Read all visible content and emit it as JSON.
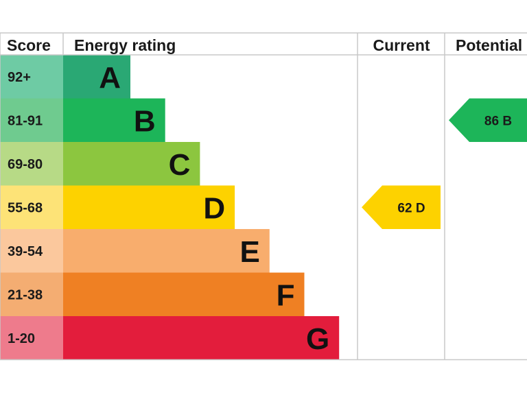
{
  "chart_data": {
    "type": "table",
    "headers": {
      "score": "Score",
      "rating": "Energy rating",
      "current": "Current",
      "potential": "Potential"
    },
    "bands": [
      {
        "letter": "A",
        "range": "92+",
        "color": "#2aa874",
        "score_color": "#6ecba4"
      },
      {
        "letter": "B",
        "range": "81-91",
        "color": "#1db559",
        "score_color": "#6fcb8f"
      },
      {
        "letter": "C",
        "range": "69-80",
        "color": "#8cc63f",
        "score_color": "#b7da86"
      },
      {
        "letter": "D",
        "range": "55-68",
        "color": "#fdd200",
        "score_color": "#fde377"
      },
      {
        "letter": "E",
        "range": "39-54",
        "color": "#f8ad6d",
        "score_color": "#fbc89d"
      },
      {
        "letter": "F",
        "range": "21-38",
        "color": "#ef8023",
        "score_color": "#f4ad72"
      },
      {
        "letter": "G",
        "range": "1-20",
        "color": "#e31d3c",
        "score_color": "#ee7b8c"
      }
    ],
    "current": {
      "value": 62,
      "band": "D",
      "label": "62  D",
      "color": "#fdd200"
    },
    "potential": {
      "value": 86,
      "band": "B",
      "label": "86  B",
      "color": "#1db559"
    }
  }
}
